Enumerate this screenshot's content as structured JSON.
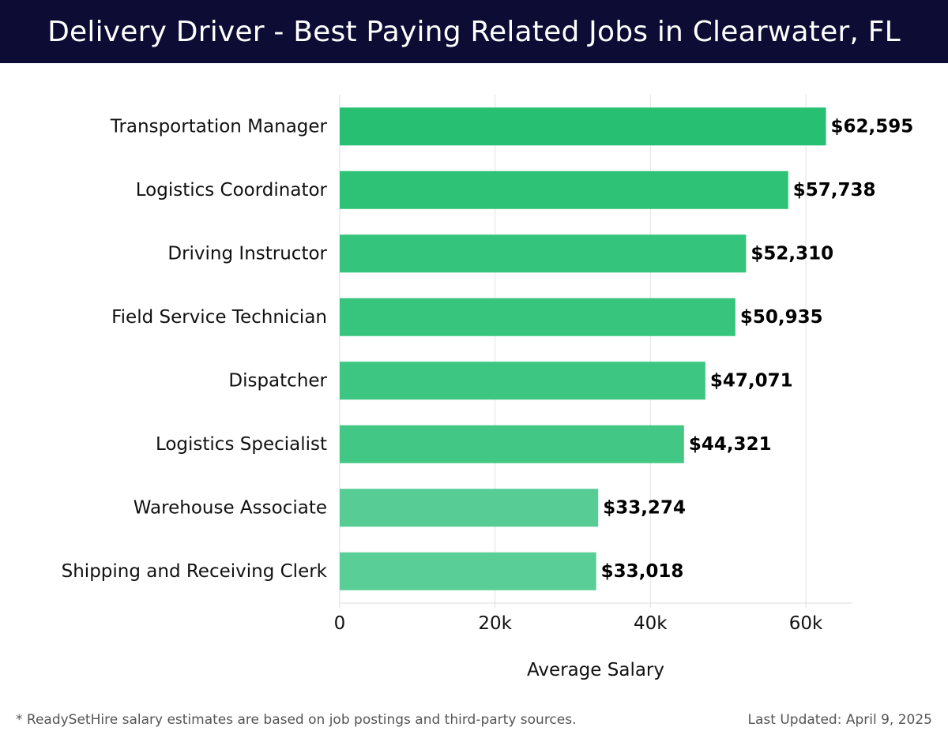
{
  "header": {
    "title": "Delivery Driver - Best Paying Related Jobs in Clearwater, FL"
  },
  "chart_data": {
    "type": "bar",
    "orientation": "horizontal",
    "title": "Delivery Driver - Best Paying Related Jobs in Clearwater, FL",
    "categories": [
      "Transportation Manager",
      "Logistics Coordinator",
      "Driving Instructor",
      "Field Service Technician",
      "Dispatcher",
      "Logistics Specialist",
      "Warehouse Associate",
      "Shipping and Receiving Clerk"
    ],
    "values": [
      62595,
      57738,
      52310,
      50935,
      47071,
      44321,
      33274,
      33018
    ],
    "value_labels": [
      "$62,595",
      "$57,738",
      "$52,310",
      "$50,935",
      "$47,071",
      "$44,321",
      "$33,274",
      "$33,018"
    ],
    "bar_colors": [
      "#27bf72",
      "#2ec277",
      "#35c47c",
      "#37c57e",
      "#3dc681",
      "#43c784",
      "#57cd95",
      "#59ce96"
    ],
    "xlabel": "Average Salary",
    "ylabel": "",
    "xlim": [
      0,
      66000
    ],
    "xticks": [
      0,
      20000,
      40000,
      60000
    ],
    "xtick_labels": [
      "0",
      "20k",
      "40k",
      "60k"
    ],
    "grid": true
  },
  "footer": {
    "note": "* ReadySetHire salary estimates are based on job postings and third-party sources.",
    "updated": "Last Updated: April 9, 2025"
  }
}
